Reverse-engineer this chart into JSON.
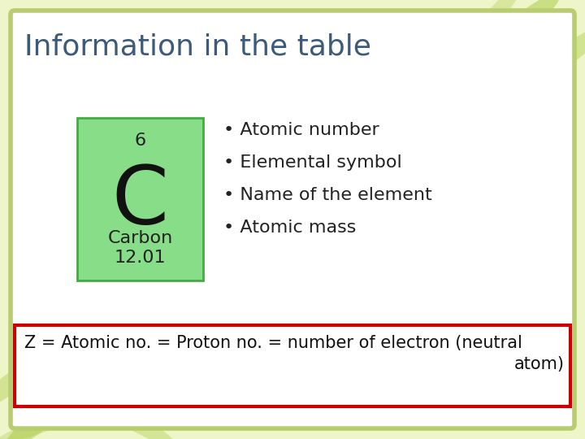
{
  "title": "Information in the table",
  "title_color": "#3d5a7a",
  "title_fontsize": 26,
  "background_outer": "#eef5c8",
  "background_inner": "#ffffff",
  "element_box_color": "#88dd88",
  "element_box_border": "#44aa44",
  "atomic_number": "6",
  "element_symbol": "C",
  "element_name": "Carbon",
  "atomic_mass": "12.01",
  "bullet_points": [
    "Atomic number",
    "Elemental symbol",
    "Name of the element",
    "Atomic mass"
  ],
  "footer_text_line1": "Z = Atomic no. = Proton no. = number of electron (neutral",
  "footer_text_line2": "atom)",
  "footer_border_color": "#cc0000",
  "footer_bg": "#ffffff",
  "slide_border_color": "#b8cc70"
}
